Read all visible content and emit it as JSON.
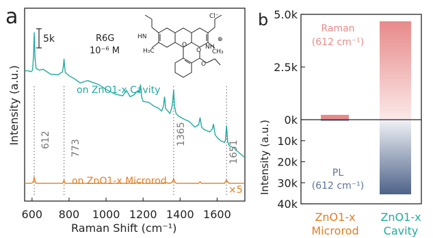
{
  "chart_data": [
    {
      "panel": "a",
      "type": "line",
      "xlabel": "Raman Shift (cm⁻¹)",
      "ylabel": "Intensity (a.u.)",
      "xlim": [
        560,
        1750
      ],
      "xticks": [
        600,
        800,
        1000,
        1200,
        1400,
        1600
      ],
      "scale_bar": "5k",
      "analyte": {
        "name": "R6G",
        "concentration": "10⁻⁶ M",
        "counterion": "Cl⁻"
      },
      "peak_markers": [
        612,
        773,
        1365,
        1651
      ],
      "multiplier_label": "×5",
      "series": [
        {
          "name": "on ZnO1-x Cavity",
          "color": "#22a8a0",
          "x": [
            560,
            580,
            595,
            603,
            608,
            612,
            616,
            622,
            640,
            660,
            700,
            740,
            765,
            770,
            773,
            776,
            780,
            800,
            830,
            860,
            900,
            960,
            1000,
            1050,
            1090,
            1110,
            1130,
            1150,
            1170,
            1180,
            1186,
            1192,
            1200,
            1230,
            1260,
            1280,
            1300,
            1310,
            1316,
            1322,
            1330,
            1345,
            1355,
            1360,
            1365,
            1370,
            1378,
            1390,
            1420,
            1450,
            1480,
            1500,
            1508,
            1516,
            1530,
            1560,
            1575,
            1580,
            1590,
            1605,
            1620,
            1640,
            1645,
            1651,
            1657,
            1665,
            1690,
            1720,
            1750
          ],
          "y": [
            54.2,
            54.2,
            54.1,
            54.3,
            56.0,
            59.0,
            55.8,
            54.5,
            54.3,
            54.4,
            53.8,
            53.7,
            54.1,
            54.9,
            55.7,
            54.8,
            54.0,
            53.6,
            53.2,
            52.7,
            53.0,
            52.5,
            51.9,
            51.3,
            51.1,
            51.8,
            51.0,
            51.2,
            51.7,
            51.6,
            52.5,
            51.0,
            50.4,
            50.3,
            49.8,
            49.6,
            49.2,
            49.8,
            51.0,
            49.5,
            49.3,
            48.9,
            49.6,
            50.4,
            51.8,
            49.8,
            48.9,
            48.6,
            48.2,
            47.9,
            47.2,
            47.5,
            48.4,
            47.2,
            46.9,
            46.6,
            47.0,
            47.6,
            46.2,
            45.8,
            45.5,
            45.3,
            45.6,
            47.4,
            45.4,
            44.9,
            44.6,
            44.0,
            43.4
          ]
        },
        {
          "name": "on ZnO1-x Microrod",
          "color": "#e07e23",
          "x": [
            560,
            580,
            595,
            603,
            608,
            612,
            616,
            622,
            640,
            660,
            700,
            740,
            765,
            770,
            773,
            776,
            780,
            800,
            830,
            860,
            900,
            960,
            1000,
            1050,
            1100,
            1150,
            1185,
            1200,
            1250,
            1300,
            1320,
            1340,
            1355,
            1360,
            1365,
            1370,
            1380,
            1400,
            1450,
            1500,
            1508,
            1515,
            1540,
            1580,
            1620,
            1640,
            1645,
            1651,
            1657,
            1665,
            1700,
            1750
          ],
          "y": [
            40.2,
            40.2,
            40.2,
            40.3,
            40.5,
            41.0,
            40.5,
            40.2,
            40.2,
            40.2,
            40.2,
            40.2,
            40.2,
            40.4,
            40.6,
            40.3,
            40.2,
            40.2,
            40.2,
            40.2,
            40.2,
            40.2,
            40.2,
            40.2,
            40.2,
            40.2,
            40.3,
            40.2,
            40.2,
            40.2,
            40.3,
            40.2,
            40.3,
            40.5,
            40.8,
            40.4,
            40.2,
            40.2,
            40.2,
            40.2,
            40.4,
            40.2,
            40.2,
            40.2,
            40.2,
            40.2,
            40.4,
            40.6,
            40.4,
            40.2,
            40.2,
            40.2
          ]
        }
      ]
    },
    {
      "panel": "b",
      "type": "bar",
      "ylabel": "Intensity (a.u.)",
      "categories": [
        "ZnO1-x\nMicrorod",
        "ZnO1-x\nCavity"
      ],
      "category_colors": [
        "#e07e23",
        "#22a8a0"
      ],
      "upper_axis": {
        "label": "Raman (612 cm⁻¹)",
        "range": [
          0,
          5000
        ],
        "ticks": [
          "0k",
          "2.5k",
          "5.0k"
        ],
        "color": "#e88a8a"
      },
      "lower_axis": {
        "label": "PL (612 cm⁻¹)",
        "range": [
          0,
          40000
        ],
        "ticks": [
          "10k",
          "20k",
          "30k",
          "40k"
        ],
        "color": "#5b7297"
      },
      "series": [
        {
          "name": "Raman (612 cm⁻¹)",
          "values": [
            230,
            4670
          ]
        },
        {
          "name": "PL (612 cm⁻¹)",
          "values": [
            580,
            35500
          ]
        }
      ]
    }
  ],
  "labels": {
    "panel_a": "a",
    "panel_b": "b",
    "scale_bar": "5k",
    "analyte_name": "R6G",
    "analyte_conc": "10⁻⁶ M",
    "counterion": "Cl⁻",
    "series_cavity": "on ZnO1-x Cavity",
    "series_microrod": "on ZnO1-x Microrod",
    "multiplier": "×5",
    "xlabel_a": "Raman Shift (cm⁻¹)",
    "ylabel_a": "Intensity (a.u.)",
    "ylabel_b": "Intensity (a.u.)",
    "raman_line1": "Raman",
    "raman_line2": "(612 cm⁻¹)",
    "pl_line1": "PL",
    "pl_line2": "(612 cm⁻¹)",
    "cat1_line1": "ZnO1-x",
    "cat1_line2": "Microrod",
    "cat2_line1": "ZnO1-x",
    "cat2_line2": "Cavity",
    "peak_612": "612",
    "peak_773": "773",
    "peak_1365": "1365",
    "peak_1651": "1651"
  }
}
